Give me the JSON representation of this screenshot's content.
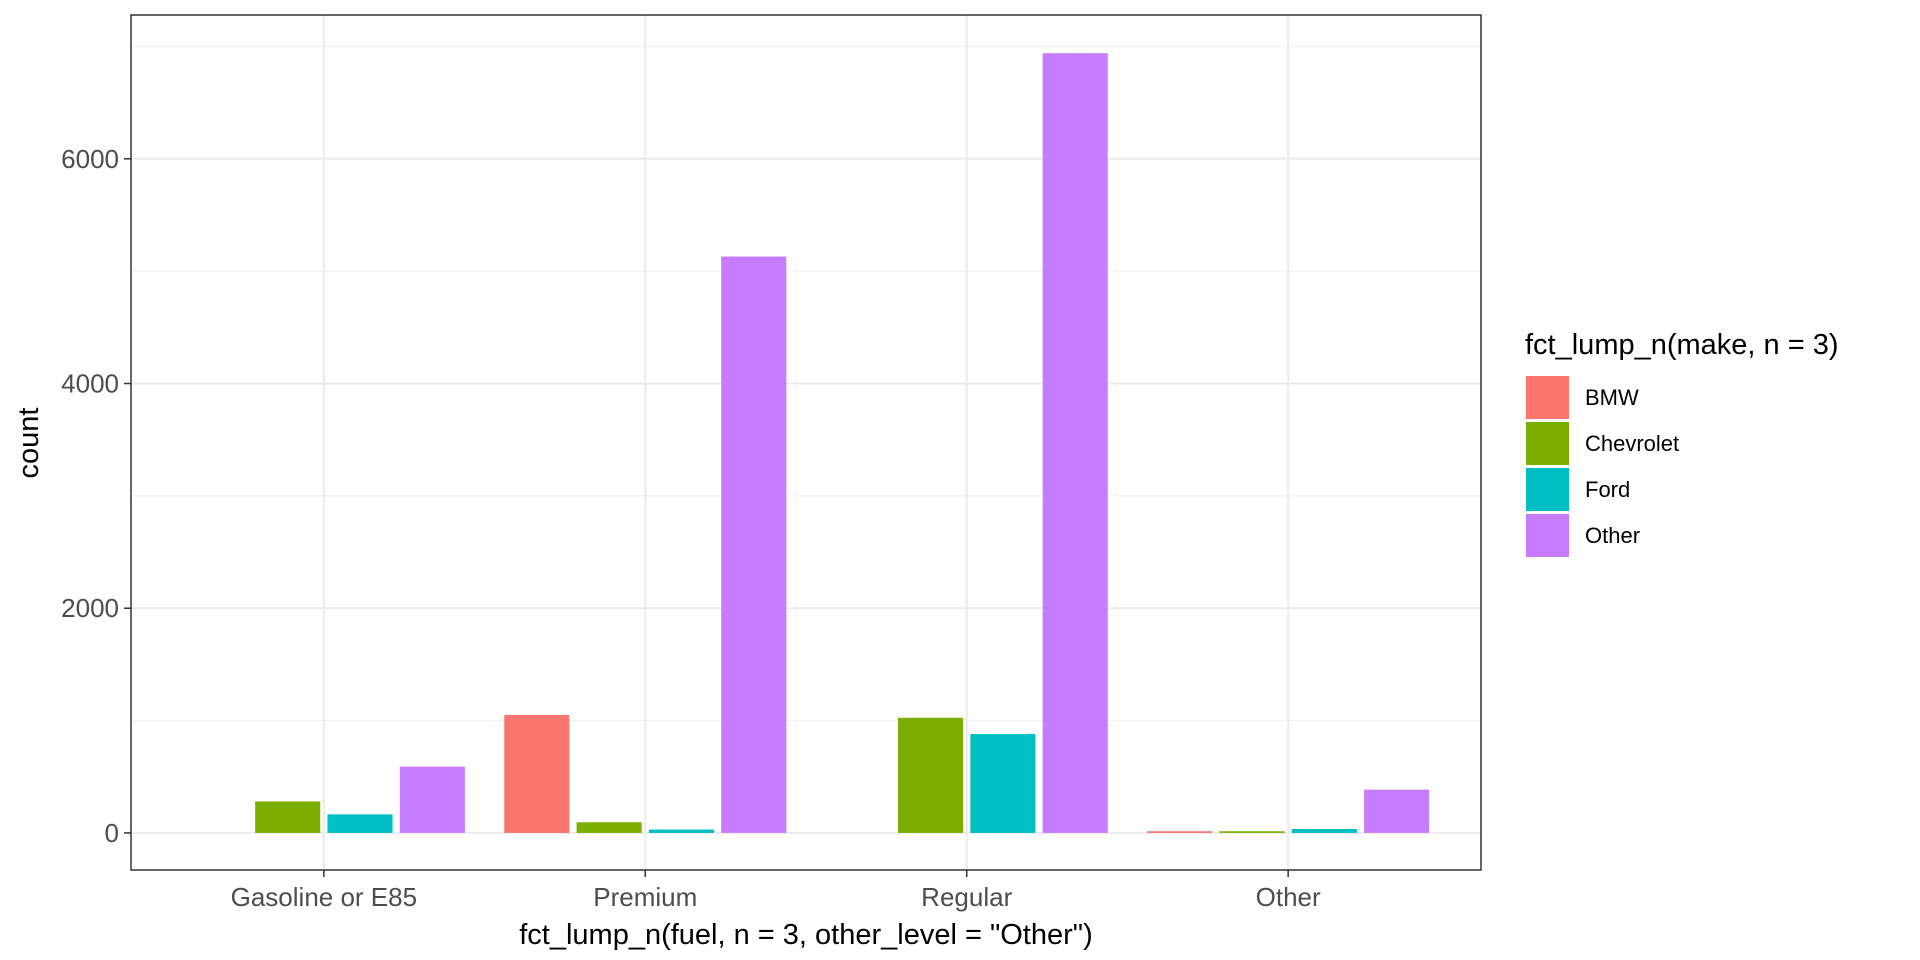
{
  "chart_data": {
    "type": "bar",
    "layout": "dodged",
    "categories": [
      "Gasoline or E85",
      "Premium",
      "Regular",
      "Other"
    ],
    "series": [
      {
        "name": "BMW",
        "color": "#F8766D",
        "values": [
          0,
          1050,
          0,
          15
        ]
      },
      {
        "name": "Chevrolet",
        "color": "#7CAE00",
        "values": [
          280,
          95,
          1025,
          15
        ]
      },
      {
        "name": "Ford",
        "color": "#00BFC4",
        "values": [
          165,
          30,
          880,
          35
        ]
      },
      {
        "name": "Other",
        "color": "#C77CFF",
        "values": [
          590,
          5130,
          6940,
          385
        ]
      }
    ],
    "xlabel": "fct_lump_n(fuel, n = 3, other_level = \"Other\")",
    "ylabel": "count",
    "ylim": [
      -330,
      7280
    ],
    "yticks": [
      0,
      2000,
      4000,
      6000
    ],
    "grid": true,
    "legend": {
      "title": "fct_lump_n(make, n = 3)",
      "placement": "right"
    }
  }
}
